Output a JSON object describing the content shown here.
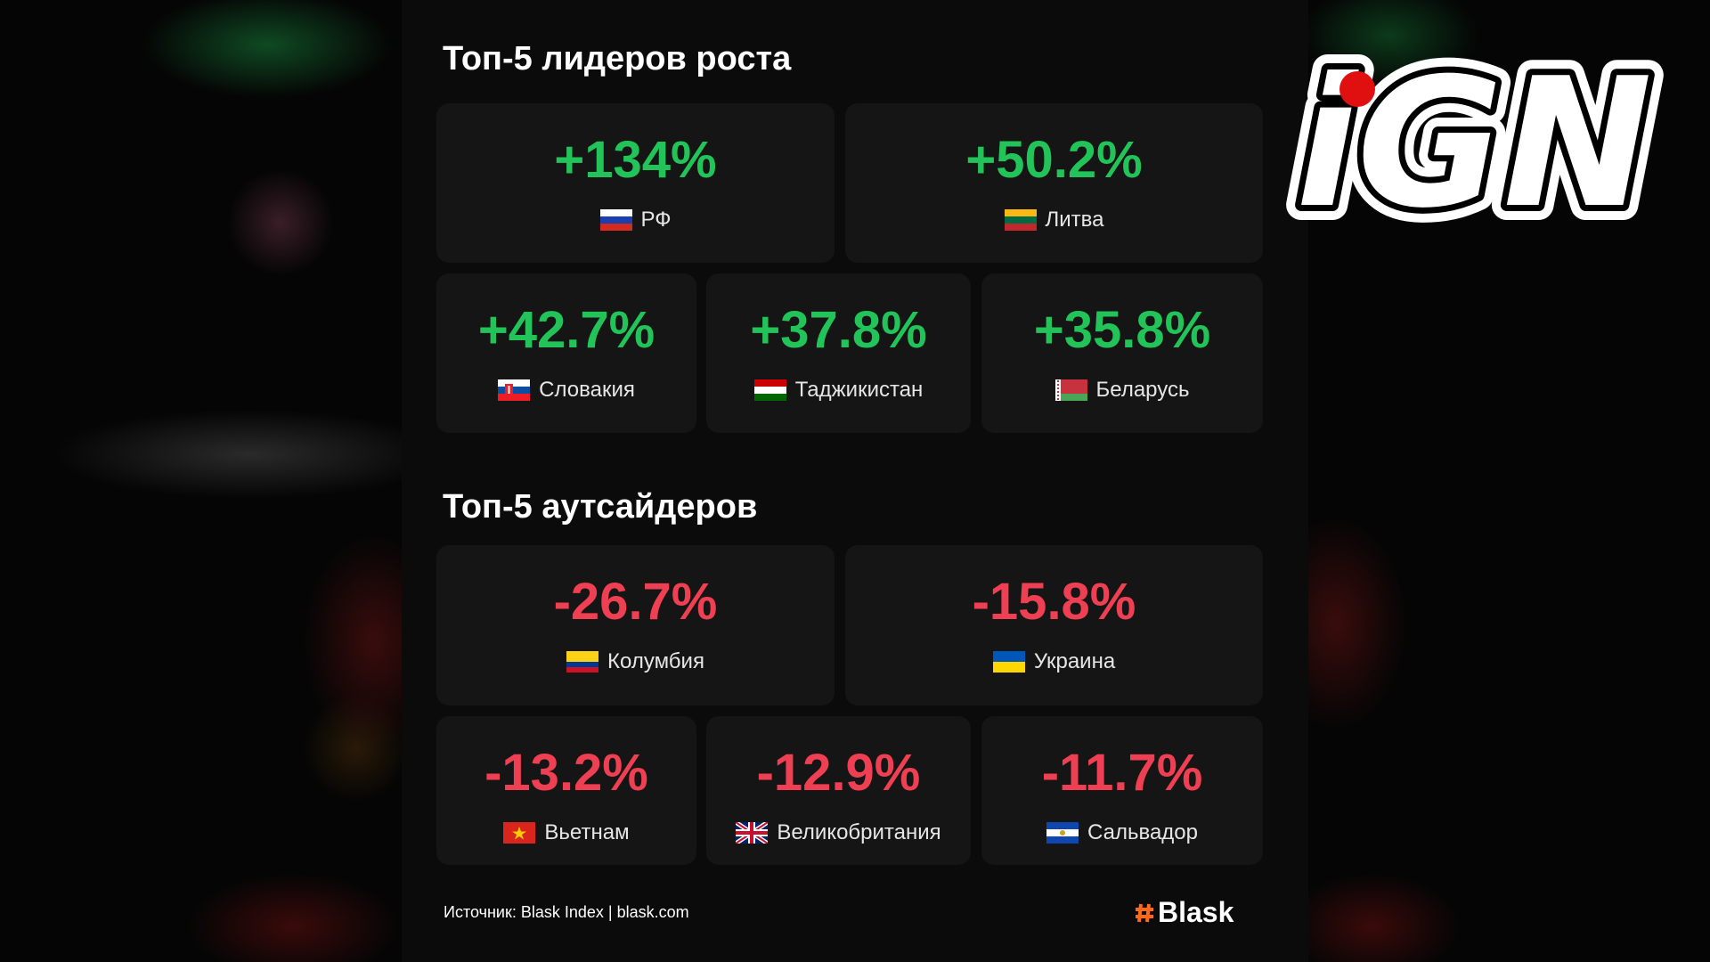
{
  "sections": [
    {
      "title": "Топ-5 лидеров роста",
      "items": [
        {
          "value": "+134%",
          "country": "РФ"
        },
        {
          "value": "+50.2%",
          "country": "Литва"
        },
        {
          "value": "+42.7%",
          "country": "Словакия"
        },
        {
          "value": "+37.8%",
          "country": "Таджикистан"
        },
        {
          "value": "+35.8%",
          "country": "Беларусь"
        }
      ]
    },
    {
      "title": "Топ-5 аутсайдеров",
      "items": [
        {
          "value": "-26.7%",
          "country": "Колумбия"
        },
        {
          "value": "-15.8%",
          "country": "Украина"
        },
        {
          "value": "-13.2%",
          "country": "Вьетнам"
        },
        {
          "value": "-12.9%",
          "country": "Великобритания"
        },
        {
          "value": "-11.7%",
          "country": "Сальвадор"
        }
      ]
    }
  ],
  "footer": {
    "source": "Источник: Blask Index | blask.com",
    "brand": "Blask"
  },
  "logo": "iGN"
}
